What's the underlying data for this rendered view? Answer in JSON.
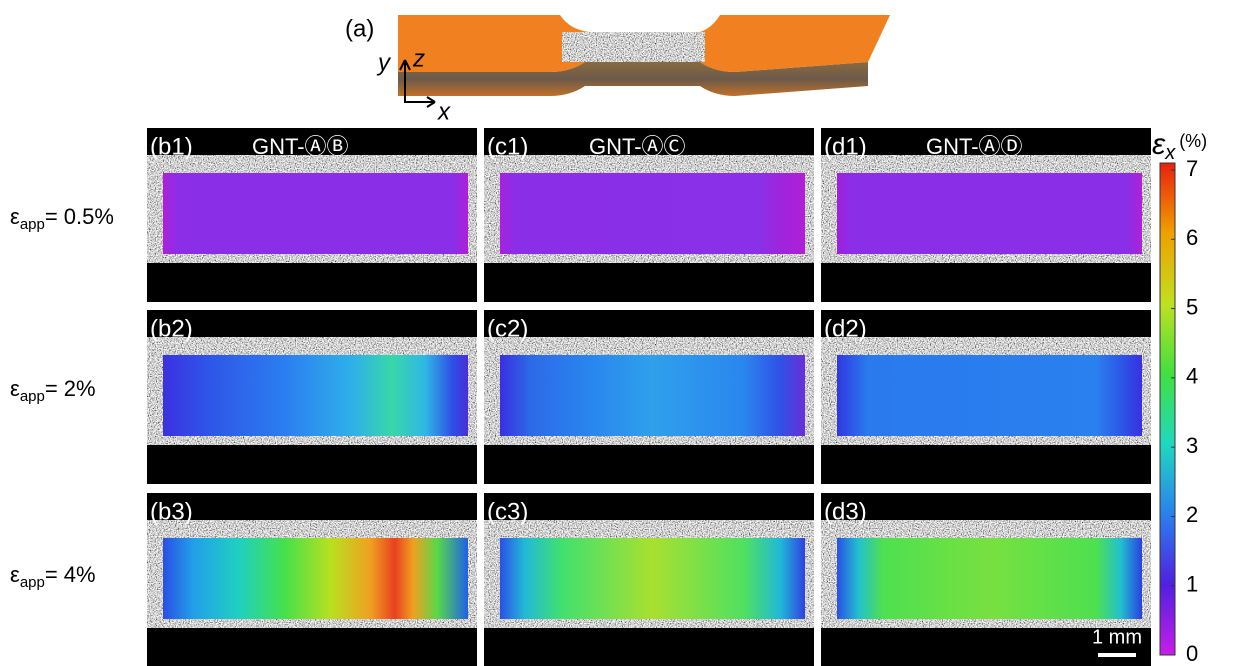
{
  "figure": {
    "panel_a": {
      "label": "(a)",
      "axis_y": "y",
      "axis_z": "z",
      "axis_x": "x"
    },
    "panels": [
      {
        "label": "(b1)",
        "title": "GNT-ⒶⒷ"
      },
      {
        "label": "(c1)",
        "title": "GNT-ⒶⒸ"
      },
      {
        "label": "(d1)",
        "title": "GNT-ⒶⒹ"
      },
      {
        "label": "(b2)"
      },
      {
        "label": "(c2)"
      },
      {
        "label": "(d2)"
      },
      {
        "label": "(b3)"
      },
      {
        "label": "(c3)"
      },
      {
        "label": "(d3)"
      }
    ],
    "row_labels": [
      {
        "symbol": "ε",
        "subscript": "app",
        "text": "= 0.5%"
      },
      {
        "symbol": "ε",
        "subscript": "app",
        "text": "= 2%"
      },
      {
        "symbol": "ε",
        "subscript": "app",
        "text": "= 4%"
      }
    ],
    "colorbar": {
      "symbol": "ε",
      "subscript": "x",
      "unit": "(%)",
      "ticks": [
        0,
        1,
        2,
        3,
        4,
        5,
        6,
        7
      ]
    },
    "scale_bar": "1 mm"
  }
}
